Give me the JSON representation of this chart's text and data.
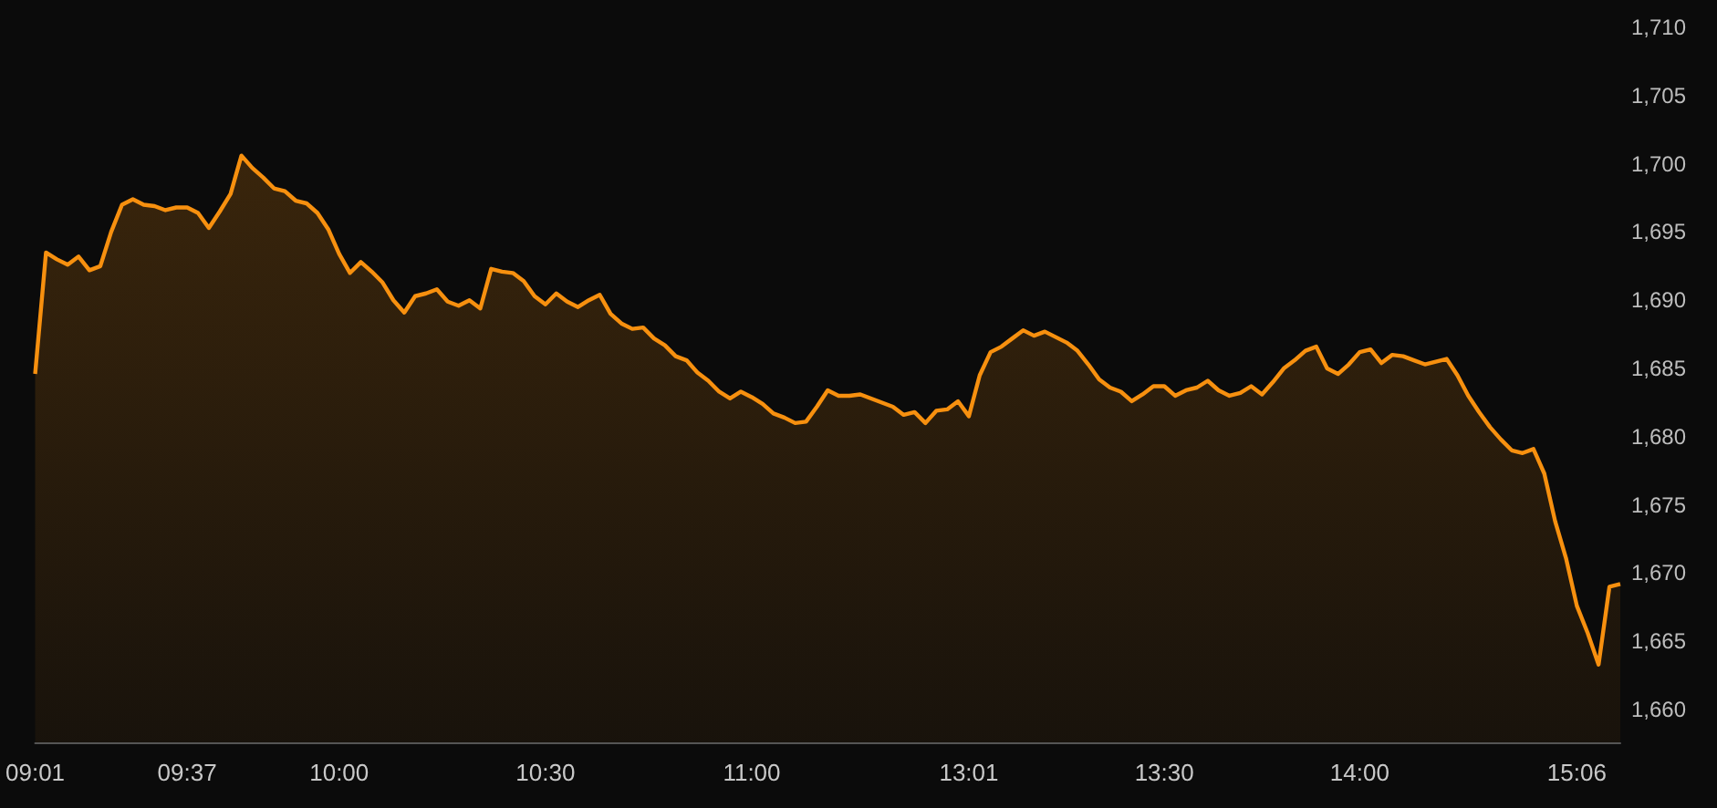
{
  "chart_data": {
    "type": "area",
    "marker": "none",
    "categories": [
      "09:01",
      null,
      null,
      null,
      null,
      null,
      null,
      null,
      null,
      null,
      null,
      null,
      null,
      null,
      "09:37",
      null,
      null,
      null,
      null,
      null,
      null,
      null,
      null,
      null,
      null,
      null,
      null,
      null,
      "10:00",
      null,
      null,
      null,
      null,
      null,
      null,
      null,
      null,
      null,
      null,
      null,
      null,
      null,
      null,
      null,
      null,
      null,
      null,
      "10:30",
      null,
      null,
      null,
      null,
      null,
      null,
      null,
      null,
      null,
      null,
      null,
      null,
      null,
      null,
      null,
      null,
      null,
      null,
      "11:00",
      null,
      null,
      null,
      null,
      null,
      null,
      null,
      null,
      null,
      null,
      null,
      null,
      null,
      null,
      null,
      null,
      null,
      null,
      null,
      "13:01",
      null,
      null,
      null,
      null,
      null,
      null,
      null,
      null,
      null,
      null,
      null,
      null,
      null,
      null,
      null,
      null,
      null,
      "13:30",
      null,
      null,
      null,
      null,
      null,
      null,
      null,
      null,
      null,
      null,
      null,
      null,
      null,
      null,
      null,
      null,
      null,
      "14:00",
      null,
      null,
      null,
      null,
      null,
      null,
      null,
      null,
      null,
      null,
      null,
      null,
      null,
      null,
      null,
      null,
      null,
      null,
      null,
      "15:06",
      null,
      null,
      null,
      null
    ],
    "series": [
      {
        "color": "#f7900f",
        "values": [
          1684.6,
          1693.5,
          1693.0,
          1692.6,
          1693.2,
          1692.2,
          1692.5,
          1695.0,
          1697.0,
          1697.4,
          1697.0,
          1696.9,
          1696.6,
          1696.8,
          1696.8,
          1696.4,
          1695.3,
          1696.5,
          1697.8,
          1700.6,
          1699.7,
          1699.0,
          1698.2,
          1698.0,
          1697.3,
          1697.1,
          1696.4,
          1695.2,
          1693.4,
          1692.0,
          1692.8,
          1692.1,
          1691.3,
          1690.0,
          1689.1,
          1690.3,
          1690.5,
          1690.8,
          1689.9,
          1689.6,
          1690.0,
          1689.4,
          1692.3,
          1692.1,
          1692.0,
          1691.4,
          1690.3,
          1689.7,
          1690.5,
          1689.9,
          1689.5,
          1690.0,
          1690.4,
          1689.0,
          1688.3,
          1687.9,
          1688.0,
          1687.2,
          1686.7,
          1685.9,
          1685.6,
          1684.7,
          1684.1,
          1683.3,
          1682.8,
          1683.3,
          1682.9,
          1682.4,
          1681.7,
          1681.4,
          1681.0,
          1681.1,
          1682.2,
          1683.4,
          1683.0,
          1683.0,
          1683.1,
          1682.8,
          1682.5,
          1682.2,
          1681.6,
          1681.8,
          1681.0,
          1681.9,
          1682.0,
          1682.6,
          1681.5,
          1684.5,
          1686.2,
          1686.6,
          1687.2,
          1687.8,
          1687.4,
          1687.7,
          1687.3,
          1686.9,
          1686.3,
          1685.3,
          1684.2,
          1683.6,
          1683.3,
          1682.6,
          1683.1,
          1683.7,
          1683.7,
          1683.0,
          1683.4,
          1683.6,
          1684.1,
          1683.4,
          1683.0,
          1683.2,
          1683.7,
          1683.1,
          1684.0,
          1685.0,
          1685.6,
          1686.3,
          1686.6,
          1685.0,
          1684.6,
          1685.3,
          1686.2,
          1686.4,
          1685.4,
          1686.0,
          1685.9,
          1685.6,
          1685.3,
          1685.5,
          1685.7,
          1684.5,
          1683.0,
          1681.8,
          1680.7,
          1679.8,
          1679.0,
          1678.8,
          1679.1,
          1677.3,
          1673.8,
          1671.1,
          1667.6,
          1665.6,
          1663.3,
          1669.0,
          1669.2
        ]
      }
    ],
    "ylim": [
      1657.6,
      1710
    ],
    "yticks": [
      {
        "value": 1660,
        "label": "1,660"
      },
      {
        "value": 1665,
        "label": "1,665"
      },
      {
        "value": 1670,
        "label": "1,670"
      },
      {
        "value": 1675,
        "label": "1,675"
      },
      {
        "value": 1680,
        "label": "1,680"
      },
      {
        "value": 1685,
        "label": "1,685"
      },
      {
        "value": 1690,
        "label": "1,690"
      },
      {
        "value": 1695,
        "label": "1,695"
      },
      {
        "value": 1700,
        "label": "1,700"
      },
      {
        "value": 1705,
        "label": "1,705"
      },
      {
        "value": 1710,
        "label": "1,710"
      }
    ]
  }
}
